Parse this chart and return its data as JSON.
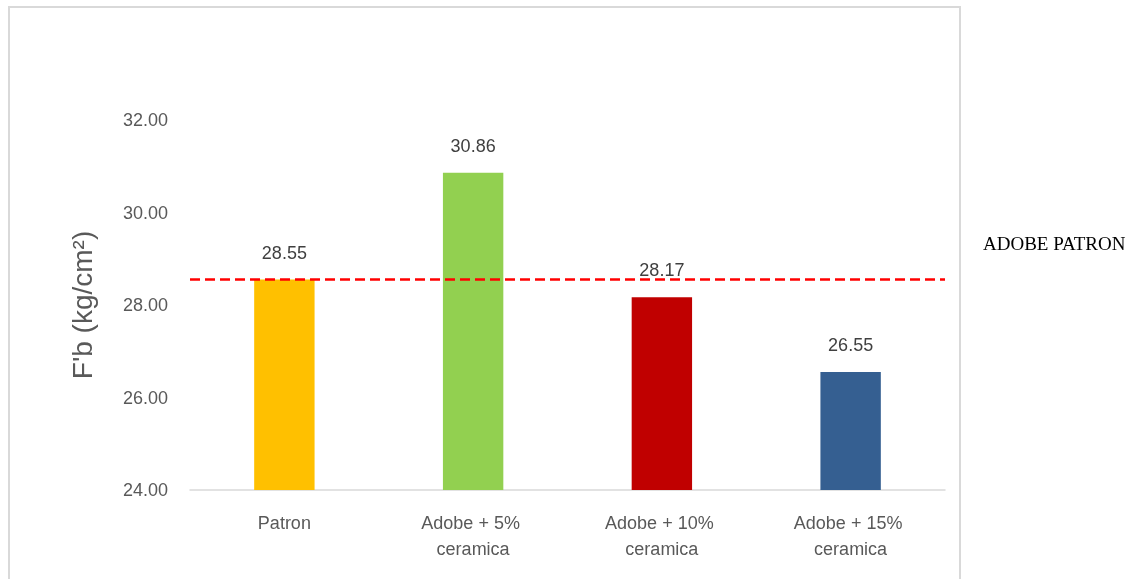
{
  "chart_data": {
    "type": "bar",
    "ylabel": "F'b (kg/cm²)",
    "categories": [
      "Patron",
      "Adobe + 5% ceramica",
      "Adobe + 10% ceramica",
      "Adobe + 15% ceramica"
    ],
    "values": [
      28.55,
      30.86,
      28.17,
      26.55
    ],
    "colors": [
      "#ffc000",
      "#92d050",
      "#c00000",
      "#355f91"
    ],
    "ylim": [
      24,
      32
    ],
    "yticks": [
      {
        "value": 24,
        "label": "24.00"
      },
      {
        "value": 26,
        "label": "26.00"
      },
      {
        "value": 28,
        "label": "28.00"
      },
      {
        "value": 30,
        "label": "30.00"
      },
      {
        "value": 32,
        "label": "32.00"
      }
    ],
    "data_labels": true,
    "grid": false,
    "ref_lines": [
      {
        "axis": "y",
        "value": 28.55,
        "label": "ADOBE PATRON",
        "color": "#ff0000",
        "line_style": "dashed"
      }
    ]
  }
}
